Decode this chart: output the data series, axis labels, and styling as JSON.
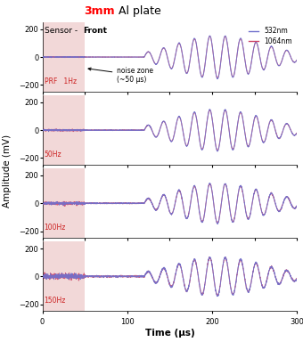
{
  "title_red": "3mm",
  "title_black": " Al plate",
  "sensor_label_normal": "Sensor - ",
  "sensor_label_bold": "Front",
  "ylabel": "Amplitude (mV)",
  "xlabel": "Time (μs)",
  "prf_labels": [
    "1Hz",
    "50Hz",
    "100Hz",
    "150Hz"
  ],
  "legend_532": "532nm",
  "legend_1064": "1064nm",
  "color_532": "#7070cc",
  "color_1064": "#cc4466",
  "noise_zone_end": 50,
  "noise_zone_color": "#e8b8b8",
  "noise_zone_alpha": 0.55,
  "xmin": 0,
  "xmax": 300,
  "ylim": [
    -250,
    250
  ],
  "bg_color": "#ffffff",
  "prf_label_color": "#cc2222",
  "noise_label": "noise zone\n(~50 μs)"
}
